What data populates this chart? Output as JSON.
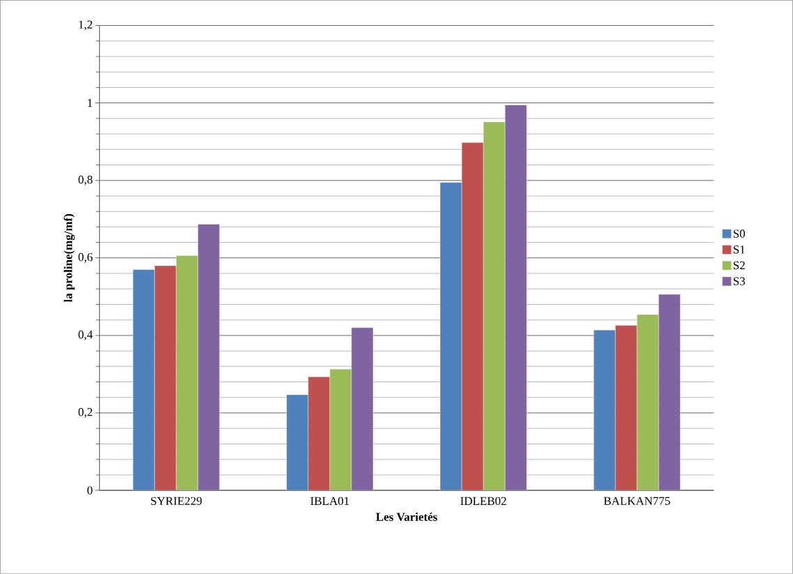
{
  "chart_data": {
    "type": "bar",
    "xlabel": "Les Varietés",
    "ylabel": "la proline(mg/mf)",
    "categories": [
      "SYRIE229",
      "IBLA01",
      "IDLEB02",
      "BALKAN775"
    ],
    "series": [
      {
        "name": "S0",
        "color": "#4f81bd",
        "values": [
          0.57,
          0.247,
          0.795,
          0.414
        ]
      },
      {
        "name": "S1",
        "color": "#c0504d",
        "values": [
          0.58,
          0.293,
          0.898,
          0.426
        ]
      },
      {
        "name": "S2",
        "color": "#9bbb59",
        "values": [
          0.606,
          0.313,
          0.951,
          0.454
        ]
      },
      {
        "name": "S3",
        "color": "#8064a2",
        "values": [
          0.687,
          0.42,
          0.995,
          0.506
        ]
      }
    ],
    "ylim": [
      0,
      1.2
    ],
    "yticks": [
      {
        "value": 0,
        "label": "0"
      },
      {
        "value": 0.2,
        "label": "0,2"
      },
      {
        "value": 0.4,
        "label": "0,4"
      },
      {
        "value": 0.6,
        "label": "0,6"
      },
      {
        "value": 0.8,
        "label": "0,8"
      },
      {
        "value": 1,
        "label": "1"
      },
      {
        "value": 1.2,
        "label": "1,2"
      }
    ],
    "grid": "y",
    "legend": "right"
  }
}
